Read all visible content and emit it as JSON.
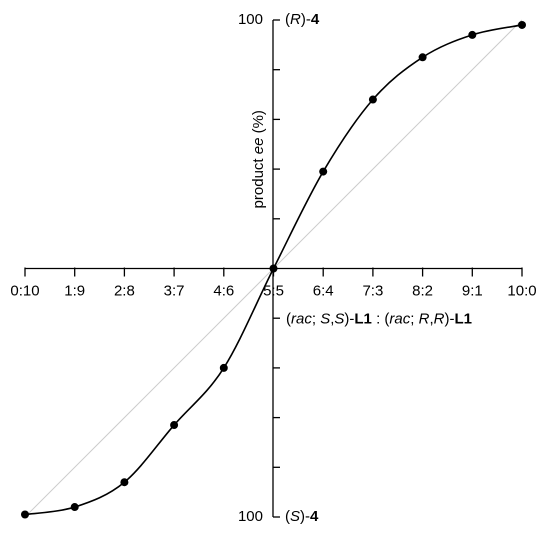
{
  "chart_data": {
    "type": "line",
    "categories": [
      "0:10",
      "1:9",
      "2:8",
      "3:7",
      "4:6",
      "5:5",
      "6:4",
      "7:3",
      "8:2",
      "9:1",
      "10:0"
    ],
    "values": [
      -99,
      -96,
      -86,
      -63,
      -40,
      0,
      39,
      68,
      85,
      94,
      98
    ],
    "color": "#000000",
    "ylim": [
      -100,
      100
    ],
    "yticks": [
      100,
      {
        "value": -100,
        "label": "100"
      }
    ],
    "yticks_unlabeled": [
      -80,
      -60,
      -40,
      -20,
      20,
      40,
      60,
      80
    ],
    "reference_line": true,
    "reference_color": "#cccccc",
    "top_label": [
      {
        "text": "("
      },
      {
        "text": "R",
        "italic": true
      },
      {
        "text": ")-"
      },
      {
        "text": "4",
        "bold": true
      }
    ],
    "bottom_label": [
      {
        "text": "("
      },
      {
        "text": "S",
        "italic": true
      },
      {
        "text": ")-"
      },
      {
        "text": "4",
        "bold": true
      }
    ],
    "x_label": [
      {
        "text": "("
      },
      {
        "text": "rac",
        "italic": true
      },
      {
        "text": "; "
      },
      {
        "text": "S",
        "italic": true
      },
      {
        "text": ","
      },
      {
        "text": "S",
        "italic": true
      },
      {
        "text": ")-"
      },
      {
        "text": "L1",
        "bold": true
      },
      {
        "text": " : ("
      },
      {
        "text": "rac",
        "italic": true
      },
      {
        "text": "; "
      },
      {
        "text": "R",
        "italic": true
      },
      {
        "text": ","
      },
      {
        "text": "R",
        "italic": true
      },
      {
        "text": ")-"
      },
      {
        "text": "L1",
        "bold": true
      }
    ],
    "y_label": [
      {
        "text": "product "
      },
      {
        "text": "ee",
        "italic": true
      },
      {
        "text": " (%)"
      }
    ]
  }
}
